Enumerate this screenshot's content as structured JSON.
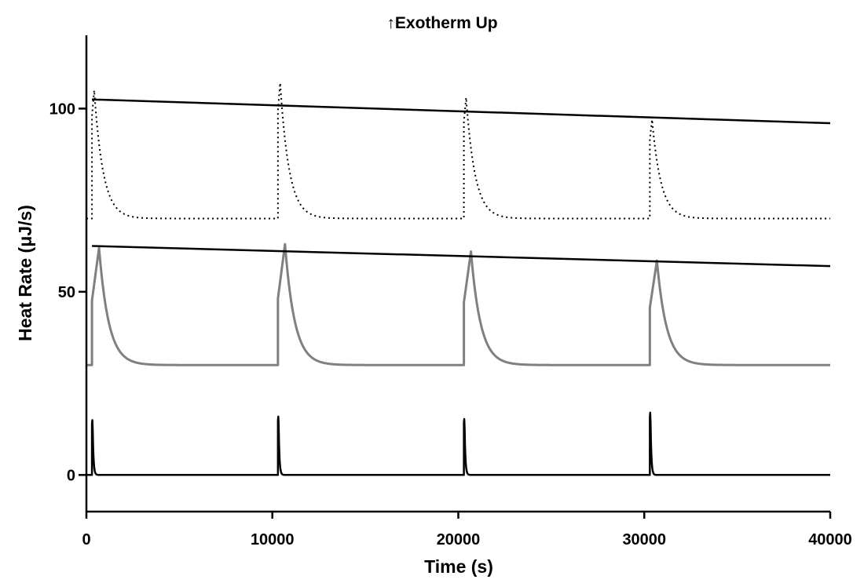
{
  "chart_data": {
    "type": "line",
    "title": "↑Exotherm Up",
    "xlabel": "Time (s)",
    "ylabel": "Heat Rate (μJ/s)",
    "xlim": [
      0,
      40000
    ],
    "ylim": [
      -10,
      120
    ],
    "xticks": [
      0,
      10000,
      20000,
      30000,
      40000
    ],
    "yticks": [
      0,
      50,
      100
    ],
    "xtick_labels": [
      "0",
      "10000",
      "20000",
      "30000",
      "40000"
    ],
    "ytick_labels": [
      "0",
      "50",
      "100"
    ],
    "grid": false,
    "legend": "none",
    "injection_times": [
      300,
      10300,
      20300,
      30300
    ],
    "series": [
      {
        "style": "solid",
        "color": "#000000",
        "baseline": 0,
        "peaks": [
          {
            "t": 300,
            "height": 15.5
          },
          {
            "t": 10300,
            "height": 16.5
          },
          {
            "t": 20300,
            "height": 15.8
          },
          {
            "t": 30300,
            "height": 17.6
          }
        ]
      },
      {
        "style": "solid",
        "color": "#808080",
        "baseline": 30,
        "peaks": [
          {
            "t": 300,
            "height": 62
          },
          {
            "t": 10300,
            "height": 63
          },
          {
            "t": 20300,
            "height": 61
          },
          {
            "t": 30300,
            "height": 58.5
          }
        ]
      },
      {
        "style": "dotted",
        "color": "#000000",
        "baseline": 70,
        "peaks": [
          {
            "t": 300,
            "height": 105
          },
          {
            "t": 10300,
            "height": 107
          },
          {
            "t": 20300,
            "height": 103
          },
          {
            "t": 30300,
            "height": 97
          }
        ]
      },
      {
        "style": "solid",
        "color": "#000000",
        "x": [
          300,
          40000
        ],
        "y": [
          62.5,
          57
        ]
      },
      {
        "style": "solid",
        "color": "#000000",
        "x": [
          300,
          40000
        ],
        "y": [
          102.5,
          96
        ]
      }
    ]
  }
}
